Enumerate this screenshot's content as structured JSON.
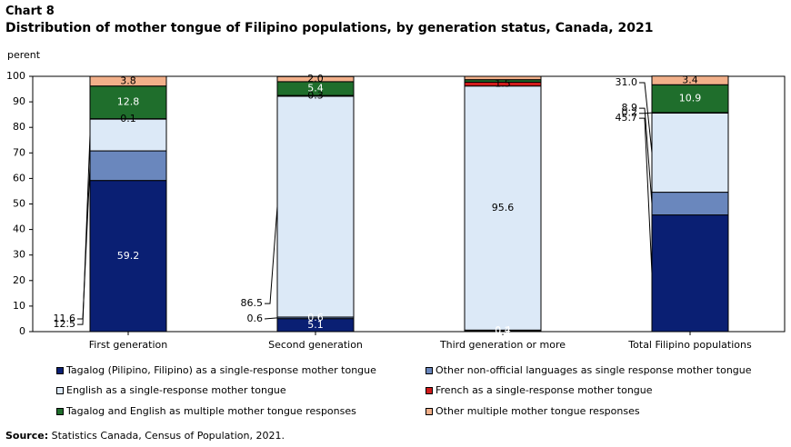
{
  "chart_number": "Chart 8",
  "title": "Distribution  of mother tongue of Filipino  populations,  by generation status, Canada, 2021",
  "source": {
    "label": "Source:",
    "text": " Statistics Canada, Census of Population, 2021."
  },
  "chart_data": {
    "type": "bar",
    "stacked": true,
    "ylabel": "perent",
    "ylim": [
      0,
      100
    ],
    "yticks": [
      "0",
      "10",
      "20",
      "30",
      "40",
      "50",
      "60",
      "70",
      "80",
      "90",
      "100"
    ],
    "categories": [
      "First generation",
      "Second generation",
      "Third generation or more",
      "Total Filipino populations"
    ],
    "series": [
      {
        "name": "Tagalog (Pilipino, Filipino) as a single-response mother tongue",
        "color": "#0a1f73",
        "values": [
          59.2,
          5.1,
          0.2,
          45.7
        ],
        "labels": [
          "59.2",
          "5.1",
          "0.2",
          "45.7"
        ]
      },
      {
        "name": "Other non-official languages as single response mother tongue",
        "color": "#6a87bd",
        "values": [
          11.6,
          0.6,
          0.4,
          8.9
        ],
        "labels": [
          "11.6",
          "0.6",
          "0.4",
          "8.9"
        ]
      },
      {
        "name": "English as a single-response mother tongue",
        "color": "#dce9f7",
        "values": [
          12.5,
          86.5,
          95.6,
          31.0
        ],
        "labels": [
          "12.5",
          "86.5",
          "95.6",
          "31.0"
        ]
      },
      {
        "name": "French as a single-response mother tongue",
        "color": "#d11c1c",
        "values": [
          0.1,
          0.3,
          1.5,
          0.2
        ],
        "labels": [
          "0.1",
          "0.3",
          "1.5",
          "0.2"
        ]
      },
      {
        "name": "Tagalog and English as multiple mother tongue responses",
        "color": "#1f6e2c",
        "values": [
          12.8,
          5.4,
          1.0,
          10.9
        ],
        "labels": [
          "12.8",
          "5.4",
          "",
          "10.9"
        ]
      },
      {
        "name": "Other multiple mother tongue responses",
        "color": "#f2b08a",
        "values": [
          3.8,
          2.0,
          1.3,
          3.4
        ],
        "labels": [
          "3.8",
          "2.0",
          "",
          "3.4"
        ]
      }
    ],
    "legend_position": "bottom"
  }
}
